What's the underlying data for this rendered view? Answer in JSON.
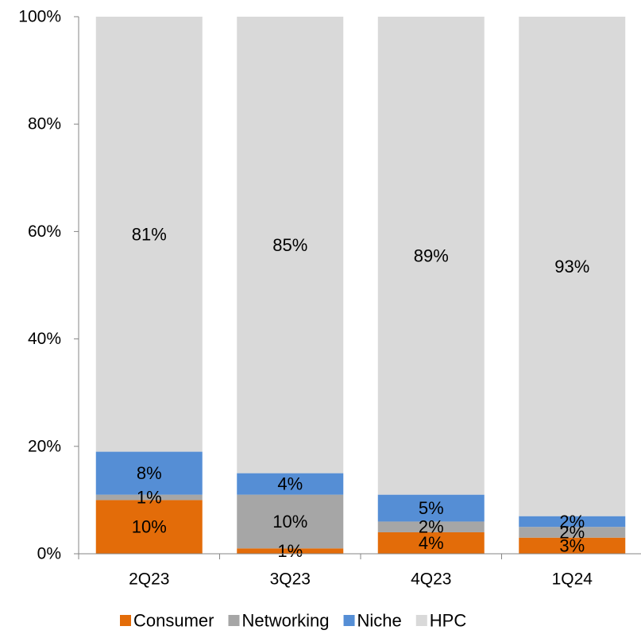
{
  "chart_data": {
    "type": "bar",
    "stacked": true,
    "categories": [
      "2Q23",
      "3Q23",
      "4Q23",
      "1Q24"
    ],
    "series": [
      {
        "name": "Consumer",
        "color": "#E36C09",
        "values": [
          10,
          1,
          4,
          3
        ],
        "labels": [
          "10%",
          "1%",
          "4%",
          "3%"
        ]
      },
      {
        "name": "Networking",
        "color": "#A6A6A6",
        "values": [
          1,
          10,
          2,
          2
        ],
        "labels": [
          "1%",
          "10%",
          "2%",
          "2%"
        ]
      },
      {
        "name": "Niche",
        "color": "#558ED5",
        "values": [
          8,
          4,
          5,
          2
        ],
        "labels": [
          "8%",
          "4%",
          "5%",
          "2%"
        ]
      },
      {
        "name": "HPC",
        "color": "#D9D9D9",
        "values": [
          81,
          85,
          89,
          93
        ],
        "labels": [
          "81%",
          "85%",
          "89%",
          "93%"
        ]
      }
    ],
    "ylim": [
      0,
      100
    ],
    "yticks": [
      0,
      20,
      40,
      60,
      80,
      100
    ],
    "ytick_labels": [
      "0%",
      "20%",
      "40%",
      "60%",
      "80%",
      "100%"
    ],
    "grid": false,
    "legend_position": "bottom"
  }
}
